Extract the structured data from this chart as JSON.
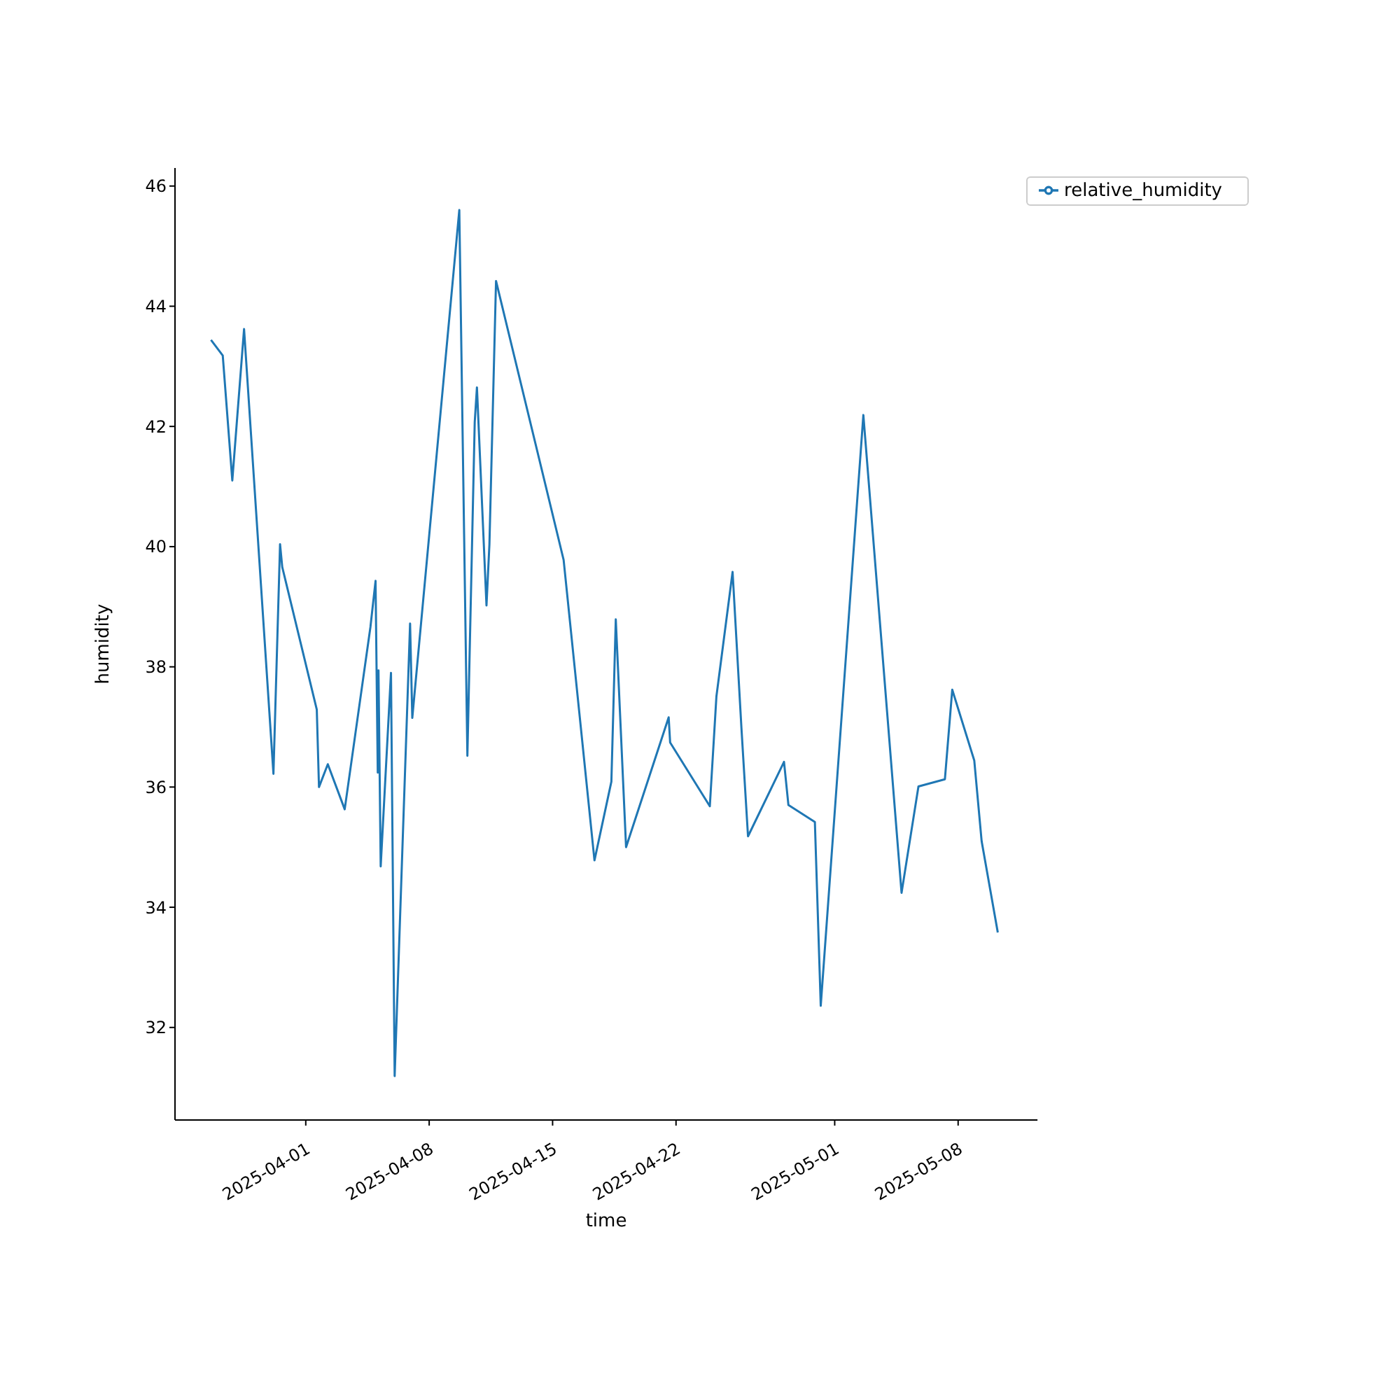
{
  "chart_data": {
    "type": "line",
    "xlabel": "time",
    "ylabel": "humidity",
    "x": [
      "2025-03-26T15:00",
      "2025-03-27T07:00",
      "2025-03-27T20:00",
      "2025-03-28T12:00",
      "2025-03-30T04:00",
      "2025-03-30T13:00",
      "2025-03-30T16:00",
      "2025-04-01T15:00",
      "2025-04-01T18:00",
      "2025-04-02T06:00",
      "2025-04-03T05:00",
      "2025-04-04T16:00",
      "2025-04-04T23:00",
      "2025-04-05T02:00",
      "2025-04-05T03:00",
      "2025-04-05T06:00",
      "2025-04-05T20:00",
      "2025-04-06T01:00",
      "2025-04-06T22:00",
      "2025-04-07T01:00",
      "2025-04-09T17:00",
      "2025-04-10T04:00",
      "2025-04-10T14:00",
      "2025-04-10T17:00",
      "2025-04-11T06:00",
      "2025-04-11T10:00",
      "2025-04-11T19:00",
      "2025-04-15T15:00",
      "2025-04-17T09:00",
      "2025-04-18T08:00",
      "2025-04-18T14:00",
      "2025-04-19T04:00",
      "2025-04-21T14:00",
      "2025-04-21T16:00",
      "2025-04-23T22:00",
      "2025-04-24T07:00",
      "2025-04-25T05:00",
      "2025-04-25T17:00",
      "2025-04-26T02:00",
      "2025-04-28T03:00",
      "2025-04-28T09:00",
      "2025-04-29T21:00",
      "2025-04-30T05:00",
      "2025-05-02T15:00",
      "2025-05-04T19:00",
      "2025-05-05T18:00",
      "2025-05-07T06:00",
      "2025-05-07T16:00",
      "2025-05-08T22:00",
      "2025-05-09T08:00",
      "2025-05-10T06:00"
    ],
    "series": [
      {
        "name": "relative_humidity",
        "color": "#1f77b4",
        "values": [
          43.44,
          43.18,
          41.1,
          43.62,
          36.22,
          40.04,
          39.66,
          37.29,
          36.0,
          36.38,
          35.63,
          38.66,
          39.43,
          36.24,
          37.94,
          34.68,
          37.9,
          31.19,
          38.72,
          37.15,
          45.6,
          36.52,
          42.07,
          42.65,
          39.02,
          40.04,
          44.42,
          39.78,
          34.78,
          36.09,
          38.79,
          35.0,
          37.16,
          36.74,
          35.68,
          37.51,
          39.58,
          36.99,
          35.18,
          36.42,
          35.7,
          35.42,
          32.36,
          42.19,
          34.24,
          36.01,
          36.13,
          37.62,
          36.44,
          35.1,
          33.58
        ]
      }
    ],
    "xlim": [
      "2025-03-24T14:00",
      "2025-05-12T12:00"
    ],
    "xticks": [
      "2025-04-01",
      "2025-04-08",
      "2025-04-15",
      "2025-04-22",
      "2025-05-01",
      "2025-05-08"
    ],
    "ylim": [
      30.46,
      46.3
    ],
    "yticks": [
      32,
      34,
      36,
      38,
      40,
      42,
      44,
      46
    ],
    "legend": "top right",
    "grid": false,
    "line_style": "solid",
    "marker": "none"
  }
}
